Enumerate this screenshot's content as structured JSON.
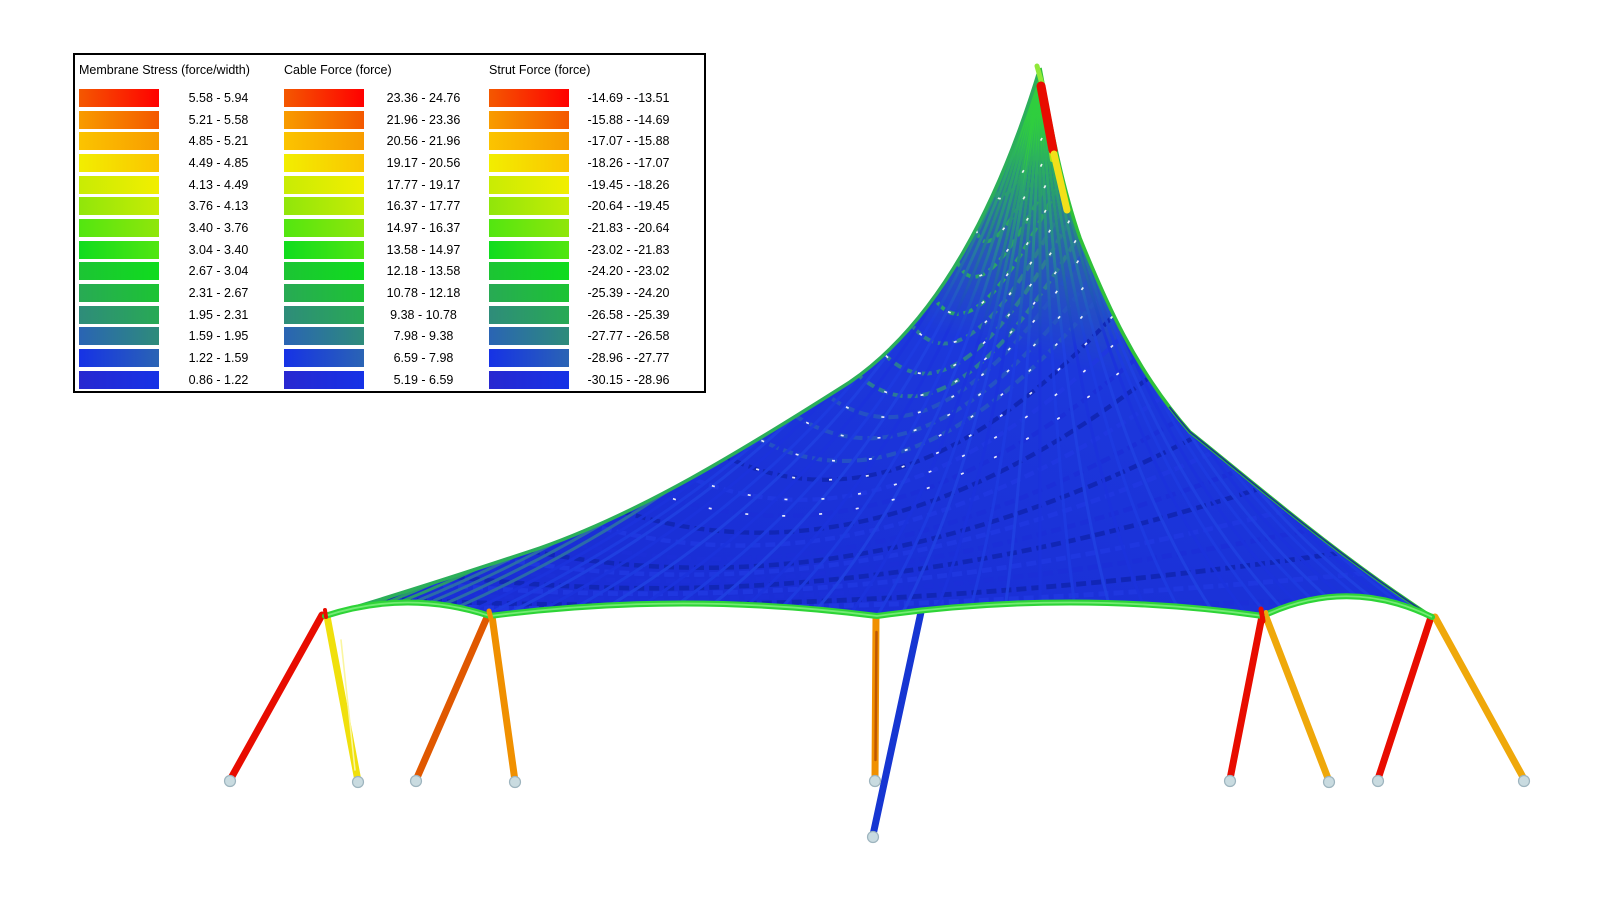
{
  "legend": {
    "columns": [
      {
        "id": "membrane-stress",
        "title": "Membrane Stress (force/width)",
        "ranges": [
          "5.58 - 5.94",
          "5.21 - 5.58",
          "4.85 - 5.21",
          "4.49 - 4.85",
          "4.13 - 4.49",
          "3.76 - 4.13",
          "3.40 - 3.76",
          "3.04 - 3.40",
          "2.67 - 3.04",
          "2.31 - 2.67",
          "1.95 - 2.31",
          "1.59 - 1.95",
          "1.22 - 1.59",
          "0.86 - 1.22"
        ]
      },
      {
        "id": "cable-force",
        "title": "Cable Force (force)",
        "ranges": [
          "23.36 - 24.76",
          "21.96 - 23.36",
          "20.56 - 21.96",
          "19.17 - 20.56",
          "17.77 - 19.17",
          "16.37 - 17.77",
          "14.97 - 16.37",
          "13.58 - 14.97",
          "12.18 - 13.58",
          "10.78 - 12.18",
          "9.38 - 10.78",
          "7.98 - 9.38",
          "6.59 - 7.98",
          "5.19 - 6.59"
        ]
      },
      {
        "id": "strut-force",
        "title": "Strut Force (force)",
        "ranges": [
          "-14.69 - -13.51",
          "-15.88 - -14.69",
          "-17.07 - -15.88",
          "-18.26 - -17.07",
          "-19.45 - -18.26",
          "-20.64 - -19.45",
          "-21.83 - -20.64",
          "-23.02 - -21.83",
          "-24.20 - -23.02",
          "-25.39 - -24.20",
          "-26.58 - -25.39",
          "-27.77 - -26.58",
          "-28.96 - -27.77",
          "-30.15 - -28.96"
        ]
      }
    ],
    "band_boundary_colors_low_to_high": [
      "#2828D0",
      "#1632E6",
      "#2A64B4",
      "#2E8C7A",
      "#28AA54",
      "#1CC434",
      "#10DC1E",
      "#52E610",
      "#90E60A",
      "#C8EC04",
      "#F2EE00",
      "#FBC400",
      "#F89C00",
      "#F45800",
      "#FF0000"
    ]
  },
  "scene": {
    "background": "#FFFFFF",
    "membrane_body_color": "#1B2FD8",
    "membrane_navy_color": "#1126B4",
    "membrane_teal_color": "#2C7E92",
    "membrane_seagreen_color": "#2BA565",
    "membrane_peak_green": "#2FCE3E",
    "edge_cable_green": "#2ED437",
    "edge_cable_highlight": "#7FEE7F",
    "ridge_yellow_green": "#A8E414",
    "strut_colors": {
      "red": "#E80C00",
      "yellow": "#F0E00C",
      "dark_orange": "#E05800",
      "orange": "#F09000",
      "amber": "#EFA80A",
      "cable_blue": "#1636D2",
      "mast_yellow": "#F2E01A",
      "mast_tip_green": "#90E838"
    },
    "node_fill": "#C9DBE0",
    "node_stroke": "#9DB4BE"
  }
}
